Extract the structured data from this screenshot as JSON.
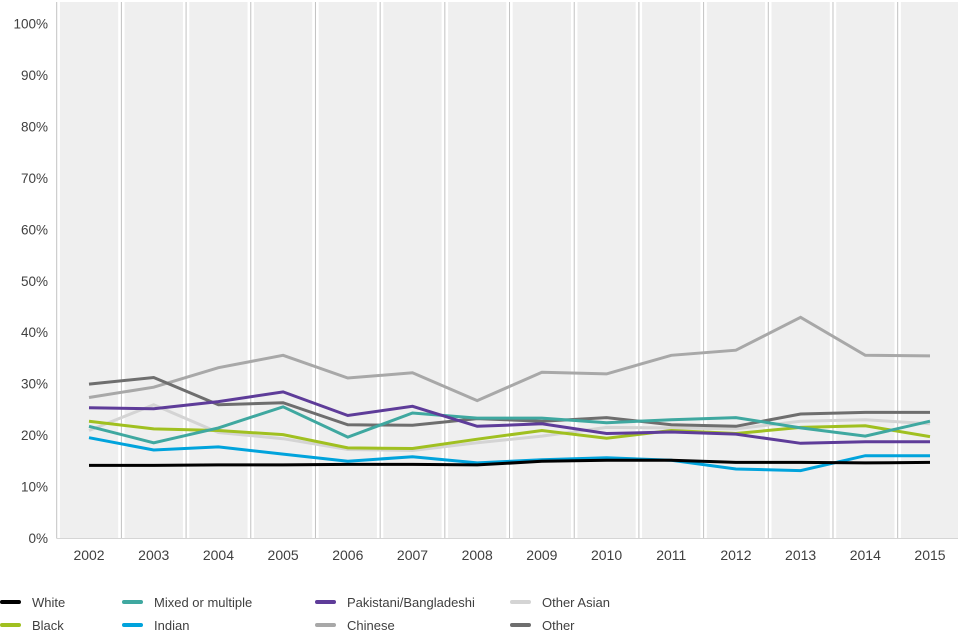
{
  "chart_data": {
    "type": "line",
    "x": [
      2002,
      2003,
      2004,
      2005,
      2006,
      2007,
      2008,
      2009,
      2010,
      2011,
      2012,
      2013,
      2014,
      2015
    ],
    "unit": "%",
    "ylim": [
      0,
      100
    ],
    "ytick_step": 10,
    "ytick_labels": [
      "0%",
      "10%",
      "20%",
      "30%",
      "40%",
      "50%",
      "60%",
      "70%",
      "80%",
      "90%",
      "100%"
    ],
    "grid": "vertical-bands",
    "legend_position": "bottom",
    "series": [
      {
        "name": "White",
        "color": "#000000",
        "values": [
          14.2,
          14.2,
          14.3,
          14.3,
          14.4,
          14.4,
          14.3,
          15.0,
          15.2,
          15.2,
          14.8,
          14.8,
          14.7,
          14.8
        ]
      },
      {
        "name": "Black",
        "color": "#a0c020",
        "values": [
          22.8,
          21.3,
          21.0,
          20.2,
          17.6,
          17.5,
          19.3,
          21.0,
          19.5,
          21.0,
          20.4,
          21.6,
          21.9,
          19.8
        ]
      },
      {
        "name": "Mixed or multiple",
        "color": "#3fa8a0",
        "values": [
          21.8,
          18.6,
          21.5,
          25.6,
          19.7,
          24.4,
          23.4,
          23.4,
          22.5,
          23.1,
          23.5,
          21.5,
          19.9,
          22.8
        ]
      },
      {
        "name": "Indian",
        "color": "#00a3dc",
        "values": [
          19.6,
          17.2,
          17.8,
          16.4,
          15.0,
          15.9,
          14.7,
          15.3,
          15.7,
          15.2,
          13.5,
          13.2,
          16.1,
          16.1
        ]
      },
      {
        "name": "Pakistani/Bangladeshi",
        "color": "#5e3c99",
        "values": [
          25.4,
          25.2,
          26.6,
          28.5,
          23.9,
          25.7,
          21.8,
          22.3,
          20.4,
          20.7,
          20.3,
          18.5,
          18.8,
          18.8
        ]
      },
      {
        "name": "Chinese",
        "color": "#a8a8a8",
        "values": [
          27.4,
          29.4,
          33.2,
          35.6,
          31.2,
          32.2,
          26.8,
          32.3,
          32.0,
          35.6,
          36.6,
          43.0,
          35.6,
          35.5
        ]
      },
      {
        "name": "Other Asian",
        "color": "#d4d4d4",
        "values": [
          21.0,
          26.0,
          20.6,
          19.4,
          17.3,
          17.1,
          18.6,
          19.9,
          21.6,
          21.5,
          21.3,
          22.8,
          23.1,
          22.3
        ]
      },
      {
        "name": "Other",
        "color": "#6e6e6e",
        "values": [
          30.0,
          31.3,
          26.0,
          26.4,
          22.1,
          22.0,
          23.3,
          22.8,
          23.5,
          22.1,
          21.8,
          24.2,
          24.5,
          24.5
        ]
      }
    ],
    "draw_order": [
      "Other Asian",
      "Chinese",
      "Other",
      "Black",
      "Indian",
      "Mixed or multiple",
      "Pakistani/Bangladeshi",
      "White"
    ],
    "legend_columns": [
      [
        "White",
        "Black"
      ],
      [
        "Mixed or multiple",
        "Indian"
      ],
      [
        "Pakistani/Bangladeshi",
        "Chinese"
      ],
      [
        "Other Asian",
        "Other"
      ]
    ],
    "colors": {
      "panel_band": "#efefef",
      "band_gap": "#ffffff",
      "gridline": "#c2c2c2",
      "baseline": "#d5d5d5",
      "tick_text": "#404040"
    }
  }
}
